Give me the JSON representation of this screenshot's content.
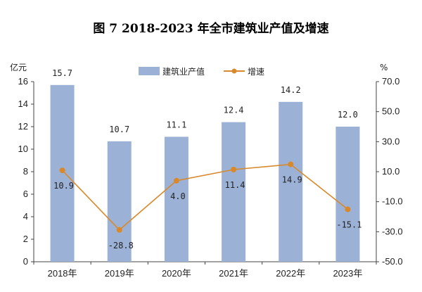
{
  "chart_data": {
    "type": "bar+line",
    "title": "图 7   2018-2023 年全市建筑业产值及增速",
    "categories": [
      "2018年",
      "2019年",
      "2020年",
      "2021年",
      "2022年",
      "2023年"
    ],
    "series": [
      {
        "name": "建筑业产值",
        "type": "bar",
        "axis": "left",
        "color": "#9BB1D6",
        "values": [
          15.7,
          10.7,
          11.1,
          12.4,
          14.2,
          12.0
        ],
        "labels": [
          "15.7",
          "10.7",
          "11.1",
          "12.4",
          "14.2",
          "12.0"
        ]
      },
      {
        "name": "增速",
        "type": "line",
        "axis": "right",
        "color": "#D9892B",
        "values": [
          10.9,
          -28.8,
          4.0,
          11.4,
          14.9,
          -15.1
        ],
        "labels": [
          "10.9",
          "-28.8",
          "4.0",
          "11.4",
          "14.9",
          "-15.1"
        ]
      }
    ],
    "y_left": {
      "unit": "亿元",
      "min": 0,
      "max": 16,
      "ticks": [
        "0",
        "2",
        "4",
        "6",
        "8",
        "10",
        "12",
        "14",
        "16"
      ]
    },
    "y_right": {
      "unit": "%",
      "min": -50,
      "max": 70,
      "ticks": [
        "-50.0",
        "-30.0",
        "-10.0",
        "10.0",
        "30.0",
        "50.0",
        "70.0"
      ]
    },
    "legend": {
      "position": "top-center"
    },
    "grid": false
  }
}
